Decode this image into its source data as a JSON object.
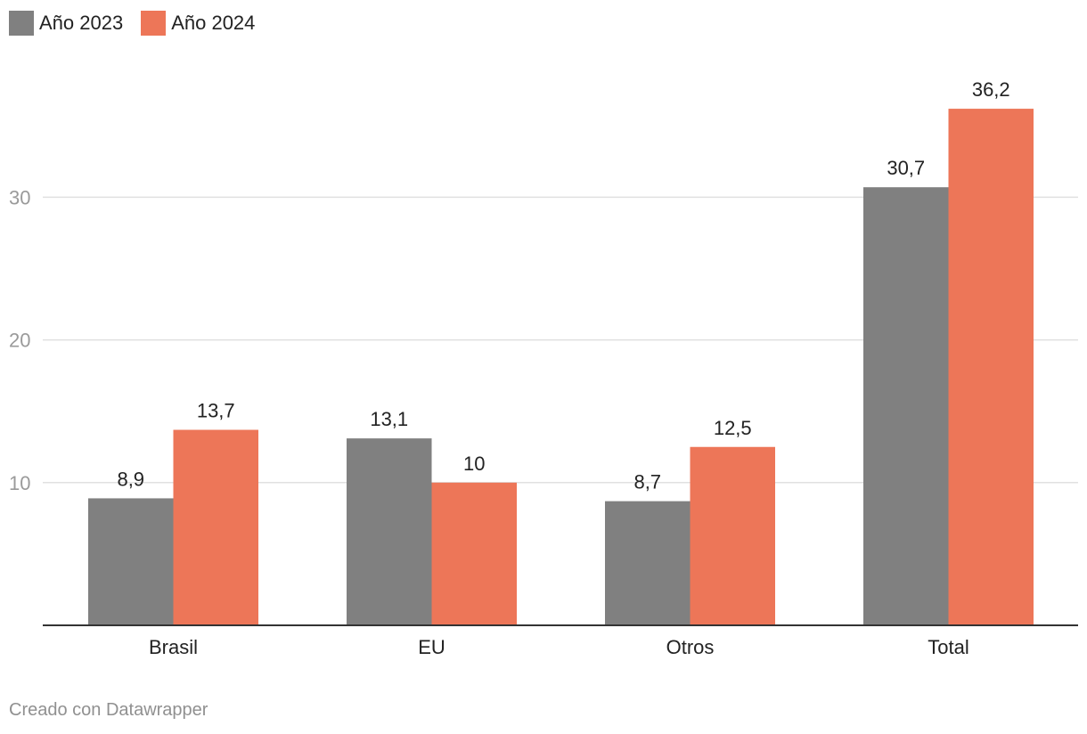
{
  "colors": {
    "series_2023": "#808080",
    "series_2024": "#ed7658",
    "grid": "#e0e0e0",
    "tick_text": "#9a9a9a",
    "baseline": "#333333"
  },
  "legend": {
    "items": [
      {
        "label": "Año 2023"
      },
      {
        "label": "Año 2024"
      }
    ]
  },
  "chart_data": {
    "type": "bar",
    "categories": [
      "Brasil",
      "EU",
      "Otros",
      "Total"
    ],
    "series": [
      {
        "name": "Año 2023",
        "values": [
          8.9,
          13.1,
          8.7,
          30.7
        ],
        "labels": [
          "8,9",
          "13,1",
          "8,7",
          "30,7"
        ]
      },
      {
        "name": "Año 2024",
        "values": [
          13.7,
          10,
          12.5,
          36.2
        ],
        "labels": [
          "13,7",
          "10",
          "12,5",
          "36,2"
        ]
      }
    ],
    "y_ticks": [
      10,
      20,
      30
    ],
    "ylim": [
      0,
      36.2
    ],
    "grid": true,
    "legend_position": "top-left",
    "title": "",
    "xlabel": "",
    "ylabel": ""
  },
  "footer": {
    "credit": "Creado con Datawrapper"
  }
}
